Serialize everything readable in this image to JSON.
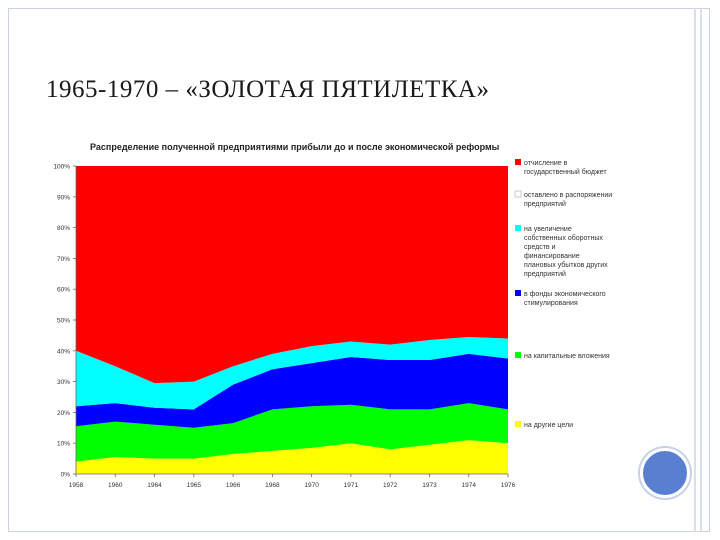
{
  "slide": {
    "title": "1965-1970 – «ЗОЛОТАЯ ПЯТИЛЕТКА»"
  },
  "chart_data": {
    "type": "area",
    "stacked": true,
    "title": "Распределение полученной предприятиями прибыли до и после экономической реформы",
    "categories": [
      "1958",
      "1960",
      "1964",
      "1965",
      "1966",
      "1968",
      "1970",
      "1971",
      "1972",
      "1973",
      "1974",
      "1976"
    ],
    "y_tick_labels": [
      "0%",
      "10%",
      "20%",
      "30%",
      "40%",
      "50%",
      "60%",
      "70%",
      "80%",
      "90%",
      "100%"
    ],
    "ylim": [
      0,
      100
    ],
    "grid": false,
    "legend_position": "right",
    "series": [
      {
        "name": "на другие цели",
        "color": "#ffff00",
        "values": [
          4,
          5.5,
          5,
          5,
          6.5,
          7.5,
          8.5,
          10,
          8,
          9.5,
          11,
          10
        ]
      },
      {
        "name": "на капитальные вложения",
        "color": "#00ff00",
        "values": [
          11.5,
          11.5,
          11,
          10,
          10,
          13.5,
          13.5,
          12.5,
          13,
          11.5,
          12,
          11
        ]
      },
      {
        "name": "в фонды экономического стимулирования",
        "color": "#0000ff",
        "values": [
          6.5,
          6,
          5.5,
          6,
          12.5,
          13,
          14,
          15.5,
          16,
          16,
          16,
          16.5
        ]
      },
      {
        "name": "на увеличение собственных оборотных средств и финансирование плановых убытков других предприятий",
        "color": "#00ffff",
        "values": [
          18,
          12,
          8,
          9,
          6,
          5,
          5.5,
          5,
          5,
          6.5,
          5.5,
          6.5
        ]
      },
      {
        "name": "оставлено в распоряжении предприятий",
        "color": "#ffffff",
        "values": [
          0,
          0,
          0,
          0,
          0,
          0,
          0,
          0,
          0,
          0,
          0,
          0
        ]
      },
      {
        "name": "отчисление в государственный бюджет",
        "color": "#ff0000",
        "values": [
          60,
          65,
          70.5,
          70,
          65,
          61,
          58.5,
          57,
          58,
          56.5,
          55.5,
          56
        ]
      }
    ],
    "legend_order": [
      "отчисление в государственный бюджет",
      "оставлено в распоряжении предприятий",
      "на увеличение собственных оборотных средств и финансирование плановых убытков других предприятий",
      "в фонды экономического стимулирования",
      "на капитальные вложения",
      "на другие цели"
    ]
  }
}
